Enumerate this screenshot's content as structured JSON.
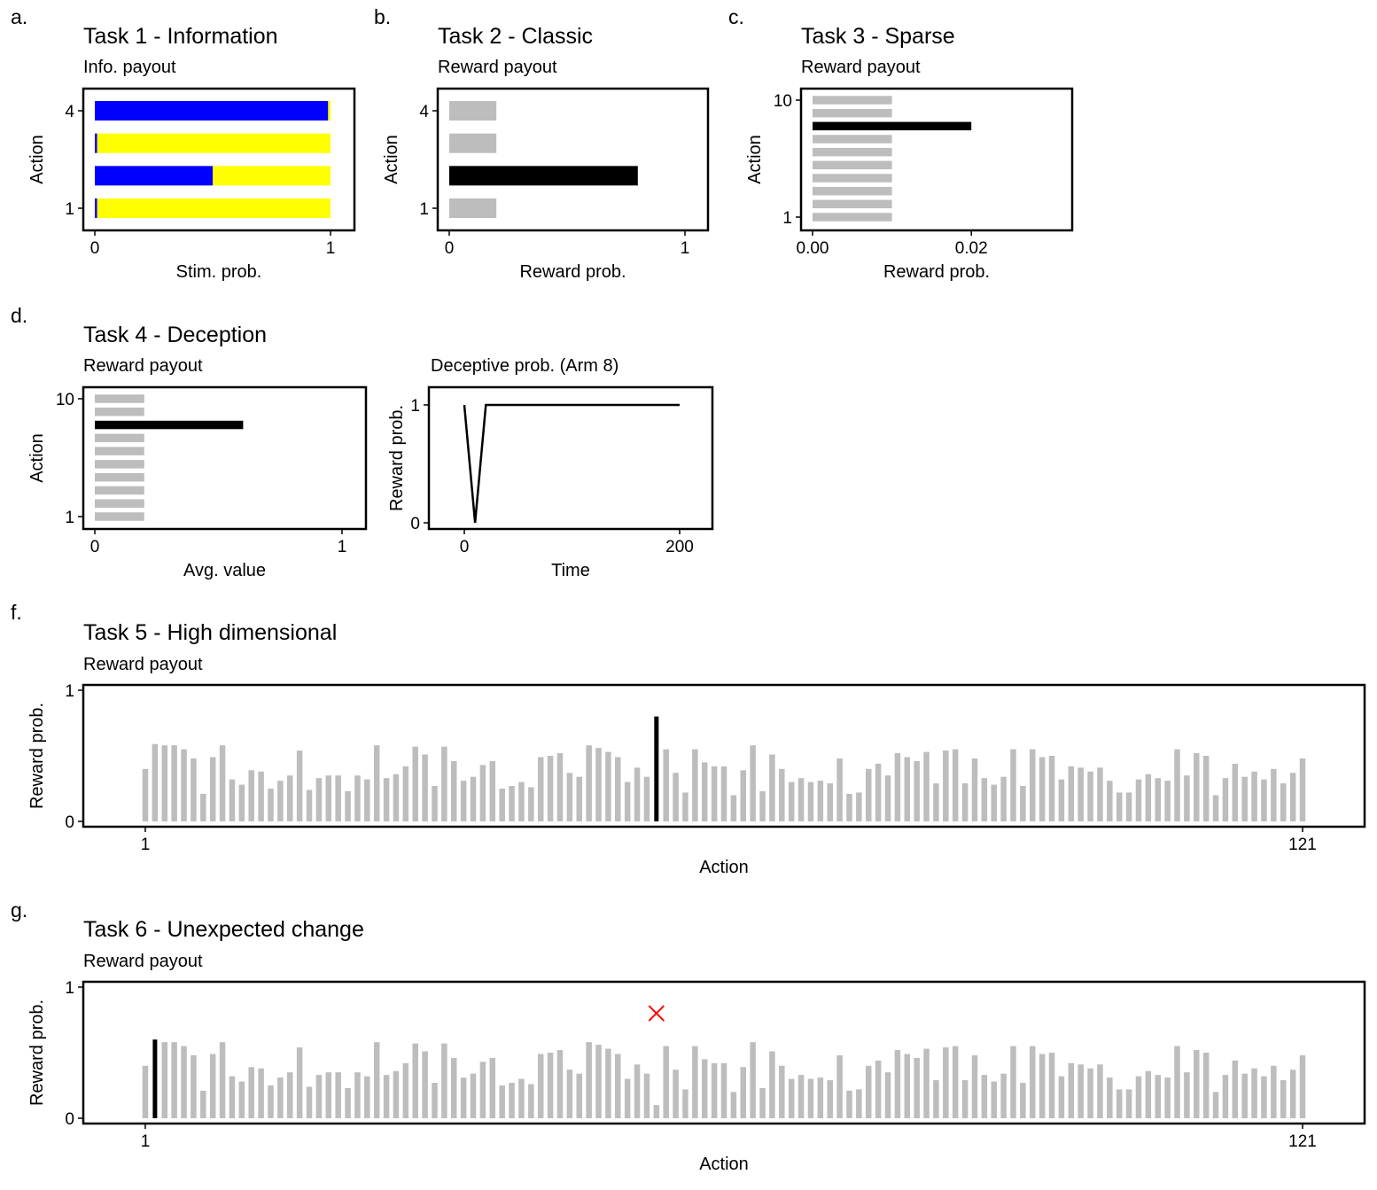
{
  "figure": {
    "panels": [
      {
        "letter": "a.",
        "title": "Task 1 - Information",
        "subtitle": "Info. payout"
      },
      {
        "letter": "b.",
        "title": "Task 2 - Classic",
        "subtitle": "Reward payout"
      },
      {
        "letter": "c.",
        "title": "Task 3 - Sparse",
        "subtitle": "Reward payout"
      },
      {
        "letter": "d.",
        "title": "Task 4 - Deception",
        "subtitle": "Reward payout"
      },
      {
        "letter": "f.",
        "title": "Task 5 - High dimensional",
        "subtitle": "Reward payout"
      },
      {
        "letter": "g.",
        "title": "Task 6 - Unexpected change",
        "subtitle": "Reward payout"
      }
    ],
    "deception_line_subtitle": "Deceptive prob. (Arm 8)"
  },
  "colors": {
    "gray": "#bdbdbd",
    "black": "#000000",
    "blue": "#0000ff",
    "yellow": "#ffff00",
    "red": "#ff0000"
  },
  "chart_data": [
    {
      "id": "task1",
      "type": "bar",
      "orientation": "horizontal",
      "stacked": true,
      "xlabel": "Stim. prob.",
      "ylabel": "Action",
      "xlim": [
        0,
        1
      ],
      "xticks": [
        "0",
        "1"
      ],
      "yticks": [
        "1",
        "4"
      ],
      "categories": [
        1,
        2,
        3,
        4
      ],
      "series": [
        {
          "color": "blue",
          "values": [
            0.01,
            0.5,
            0.01,
            0.99
          ]
        },
        {
          "color": "yellow",
          "values": [
            0.99,
            0.5,
            0.99,
            0.01
          ]
        }
      ]
    },
    {
      "id": "task2",
      "type": "bar",
      "orientation": "horizontal",
      "xlabel": "Reward prob.",
      "ylabel": "Action",
      "xlim": [
        0,
        1
      ],
      "xticks": [
        "0",
        "1"
      ],
      "yticks": [
        "1",
        "4"
      ],
      "categories": [
        1,
        2,
        3,
        4
      ],
      "values": [
        0.2,
        0.8,
        0.2,
        0.2
      ],
      "highlight_index": 1
    },
    {
      "id": "task3",
      "type": "bar",
      "orientation": "horizontal",
      "xlabel": "Reward prob.",
      "ylabel": "Action",
      "xlim": [
        0,
        0.025
      ],
      "xticks": [
        "0.00",
        "0.02"
      ],
      "yticks": [
        "1",
        "10"
      ],
      "categories": [
        1,
        2,
        3,
        4,
        5,
        6,
        7,
        8,
        9,
        10
      ],
      "values": [
        0.01,
        0.01,
        0.01,
        0.01,
        0.01,
        0.01,
        0.01,
        0.02,
        0.01,
        0.01
      ],
      "highlight_index": 7
    },
    {
      "id": "task4",
      "type": "bar",
      "orientation": "horizontal",
      "xlabel": "Avg. value",
      "ylabel": "Action",
      "xlim": [
        0,
        1
      ],
      "xticks": [
        "0",
        "1"
      ],
      "yticks": [
        "1",
        "10"
      ],
      "categories": [
        1,
        2,
        3,
        4,
        5,
        6,
        7,
        8,
        9,
        10
      ],
      "values": [
        0.2,
        0.2,
        0.2,
        0.2,
        0.2,
        0.2,
        0.2,
        0.6,
        0.2,
        0.2
      ],
      "highlight_index": 7
    },
    {
      "id": "task4_line",
      "type": "line",
      "xlabel": "Time",
      "ylabel": "Reward prob.",
      "xlim": [
        -32,
        232
      ],
      "ylim": [
        0,
        1
      ],
      "xticks": [
        "0",
        "200"
      ],
      "yticks": [
        "0",
        "1"
      ],
      "x": [
        0,
        10,
        20,
        200
      ],
      "y": [
        1,
        0,
        1,
        1
      ]
    },
    {
      "id": "task5",
      "type": "bar",
      "xlabel": "Action",
      "ylabel": "Reward prob.",
      "ylim": [
        0,
        1
      ],
      "xticks": [
        "1",
        "121"
      ],
      "yticks": [
        "0",
        "1"
      ],
      "x": [
        1,
        2,
        3,
        4,
        5,
        6,
        7,
        8,
        9,
        10,
        11,
        12,
        13,
        14,
        15,
        16,
        17,
        18,
        19,
        20,
        21,
        22,
        23,
        24,
        25,
        26,
        27,
        28,
        29,
        30,
        31,
        32,
        33,
        34,
        35,
        36,
        37,
        38,
        39,
        40,
        41,
        42,
        43,
        44,
        45,
        46,
        47,
        48,
        49,
        50,
        51,
        52,
        53,
        54,
        55,
        56,
        57,
        58,
        59,
        60,
        61,
        62,
        63,
        64,
        65,
        66,
        67,
        68,
        69,
        70,
        71,
        72,
        73,
        74,
        75,
        76,
        77,
        78,
        79,
        80,
        81,
        82,
        83,
        84,
        85,
        86,
        87,
        88,
        89,
        90,
        91,
        92,
        93,
        94,
        95,
        96,
        97,
        98,
        99,
        100,
        101,
        102,
        103,
        104,
        105,
        106,
        107,
        108,
        109,
        110,
        111,
        112,
        113,
        114,
        115,
        116,
        117,
        118,
        119,
        120,
        121
      ],
      "values": [
        0.4,
        0.59,
        0.58,
        0.58,
        0.55,
        0.48,
        0.21,
        0.49,
        0.58,
        0.32,
        0.28,
        0.39,
        0.38,
        0.25,
        0.31,
        0.35,
        0.54,
        0.24,
        0.33,
        0.35,
        0.35,
        0.23,
        0.35,
        0.32,
        0.58,
        0.33,
        0.36,
        0.42,
        0.57,
        0.51,
        0.27,
        0.57,
        0.46,
        0.31,
        0.34,
        0.43,
        0.46,
        0.25,
        0.27,
        0.3,
        0.26,
        0.49,
        0.5,
        0.52,
        0.37,
        0.34,
        0.58,
        0.56,
        0.53,
        0.49,
        0.3,
        0.41,
        0.34,
        0.8,
        0.55,
        0.37,
        0.22,
        0.55,
        0.45,
        0.42,
        0.42,
        0.2,
        0.39,
        0.58,
        0.23,
        0.51,
        0.4,
        0.3,
        0.33,
        0.3,
        0.31,
        0.29,
        0.48,
        0.21,
        0.22,
        0.4,
        0.44,
        0.35,
        0.52,
        0.49,
        0.46,
        0.53,
        0.29,
        0.54,
        0.55,
        0.29,
        0.48,
        0.33,
        0.28,
        0.34,
        0.55,
        0.27,
        0.55,
        0.49,
        0.5,
        0.32,
        0.42,
        0.41,
        0.38,
        0.41,
        0.31,
        0.22,
        0.22,
        0.32,
        0.36,
        0.33,
        0.31,
        0.55,
        0.35,
        0.52,
        0.5,
        0.2,
        0.33,
        0.44,
        0.34,
        0.38,
        0.32,
        0.4,
        0.29,
        0.37,
        0.48
      ],
      "highlight_index": 53
    },
    {
      "id": "task6",
      "type": "bar",
      "xlabel": "Action",
      "ylabel": "Reward prob.",
      "ylim": [
        0,
        1
      ],
      "xticks": [
        "1",
        "121"
      ],
      "yticks": [
        "0",
        "1"
      ],
      "x": [
        1,
        2,
        3,
        4,
        5,
        6,
        7,
        8,
        9,
        10,
        11,
        12,
        13,
        14,
        15,
        16,
        17,
        18,
        19,
        20,
        21,
        22,
        23,
        24,
        25,
        26,
        27,
        28,
        29,
        30,
        31,
        32,
        33,
        34,
        35,
        36,
        37,
        38,
        39,
        40,
        41,
        42,
        43,
        44,
        45,
        46,
        47,
        48,
        49,
        50,
        51,
        52,
        53,
        54,
        55,
        56,
        57,
        58,
        59,
        60,
        61,
        62,
        63,
        64,
        65,
        66,
        67,
        68,
        69,
        70,
        71,
        72,
        73,
        74,
        75,
        76,
        77,
        78,
        79,
        80,
        81,
        82,
        83,
        84,
        85,
        86,
        87,
        88,
        89,
        90,
        91,
        92,
        93,
        94,
        95,
        96,
        97,
        98,
        99,
        100,
        101,
        102,
        103,
        104,
        105,
        106,
        107,
        108,
        109,
        110,
        111,
        112,
        113,
        114,
        115,
        116,
        117,
        118,
        119,
        120,
        121
      ],
      "values": [
        0.4,
        0.6,
        0.58,
        0.58,
        0.55,
        0.48,
        0.21,
        0.49,
        0.58,
        0.32,
        0.28,
        0.39,
        0.38,
        0.25,
        0.31,
        0.35,
        0.54,
        0.24,
        0.33,
        0.35,
        0.35,
        0.23,
        0.35,
        0.32,
        0.58,
        0.33,
        0.36,
        0.42,
        0.57,
        0.51,
        0.27,
        0.57,
        0.46,
        0.31,
        0.34,
        0.43,
        0.46,
        0.25,
        0.27,
        0.3,
        0.26,
        0.49,
        0.5,
        0.52,
        0.37,
        0.34,
        0.58,
        0.56,
        0.53,
        0.49,
        0.3,
        0.41,
        0.34,
        0.1,
        0.55,
        0.37,
        0.22,
        0.55,
        0.45,
        0.42,
        0.42,
        0.2,
        0.39,
        0.58,
        0.23,
        0.51,
        0.4,
        0.3,
        0.33,
        0.3,
        0.31,
        0.29,
        0.48,
        0.21,
        0.22,
        0.4,
        0.44,
        0.35,
        0.52,
        0.49,
        0.46,
        0.53,
        0.29,
        0.54,
        0.55,
        0.29,
        0.48,
        0.33,
        0.28,
        0.34,
        0.55,
        0.27,
        0.55,
        0.49,
        0.5,
        0.32,
        0.42,
        0.41,
        0.38,
        0.41,
        0.31,
        0.22,
        0.22,
        0.32,
        0.36,
        0.33,
        0.31,
        0.55,
        0.35,
        0.52,
        0.5,
        0.2,
        0.33,
        0.44,
        0.34,
        0.38,
        0.32,
        0.4,
        0.29,
        0.37,
        0.48
      ],
      "highlight_index": 1,
      "removed_marker": {
        "x": 54,
        "y": 0.8
      }
    }
  ]
}
